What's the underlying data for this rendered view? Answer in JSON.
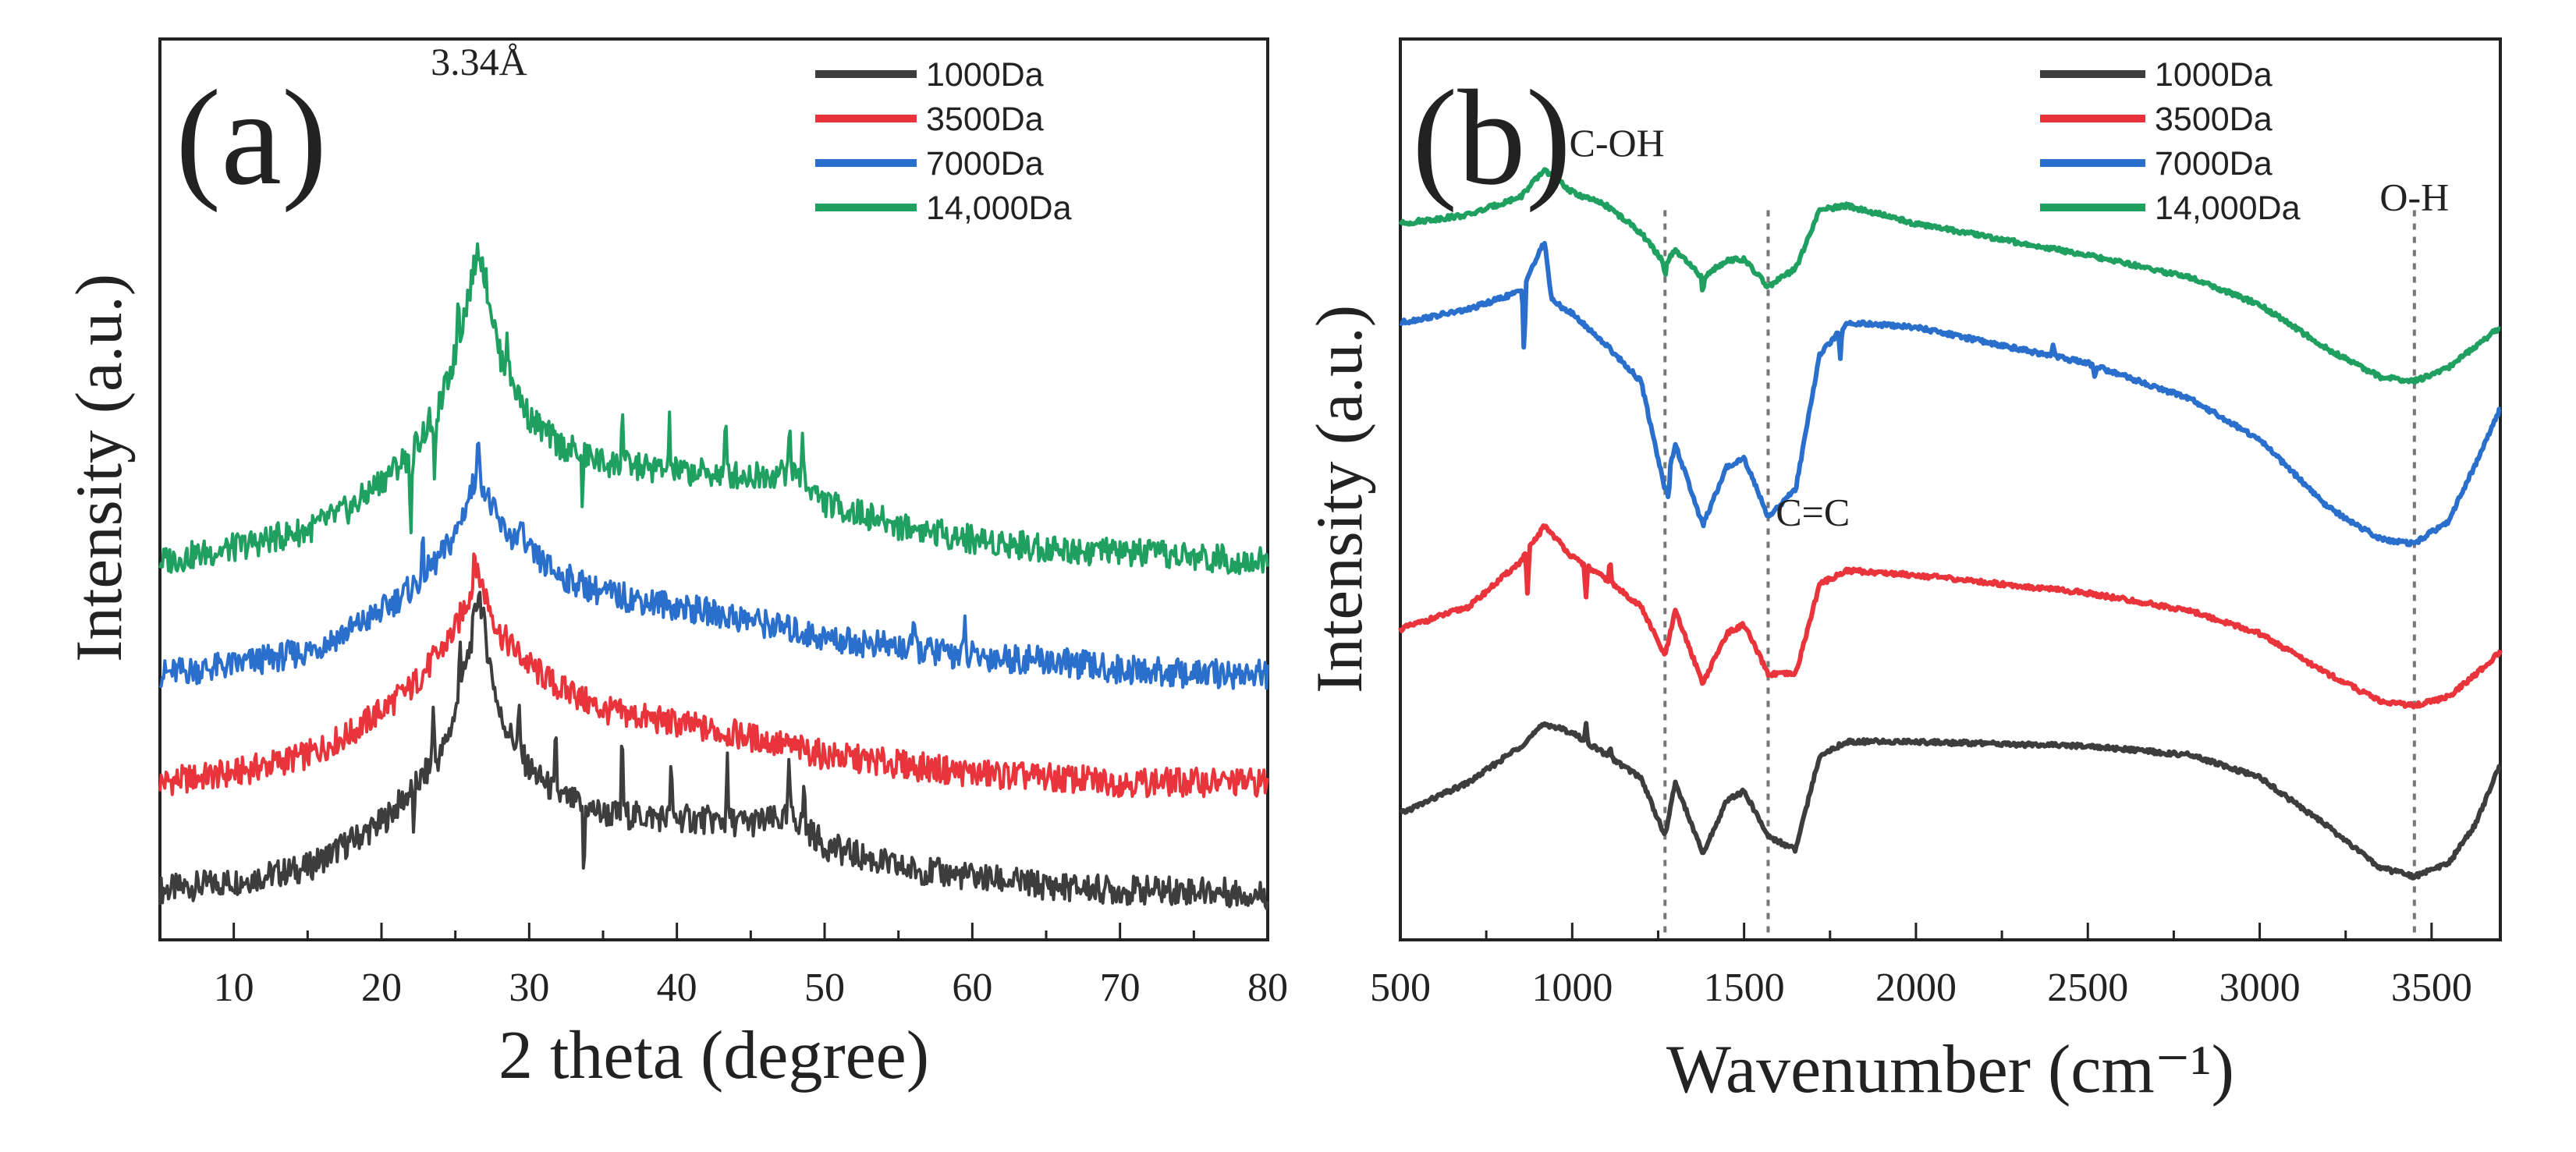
{
  "chart_data": [
    {
      "id": "a",
      "type": "line",
      "panel_label": "(a)",
      "title": "",
      "xlabel": "2 theta (degree)",
      "ylabel": "Intensity (a.u.)",
      "xlim": [
        5,
        80
      ],
      "ylim": [
        0,
        10
      ],
      "x_ticks": [
        10,
        20,
        30,
        40,
        50,
        60,
        70,
        80
      ],
      "y_ticks_shown": false,
      "legend_position": "top-right",
      "annotations": [
        {
          "text": "3.34Å",
          "x": 26.6,
          "y": 9.6
        }
      ],
      "series": [
        {
          "name": "1000Da",
          "color": "#3d3d3d",
          "points": [
            [
              5,
              0.55
            ],
            [
              10,
              0.65
            ],
            [
              15,
              0.8
            ],
            [
              18,
              1.1
            ],
            [
              20,
              1.3
            ],
            [
              22,
              1.65
            ],
            [
              24,
              2.05
            ],
            [
              25,
              2.5
            ],
            [
              26,
              3.25
            ],
            [
              26.6,
              3.9
            ],
            [
              27.2,
              3.2
            ],
            [
              28,
              2.5
            ],
            [
              30,
              1.9
            ],
            [
              32,
              1.6
            ],
            [
              35,
              1.4
            ],
            [
              40,
              1.35
            ],
            [
              45,
              1.3
            ],
            [
              48,
              1.35
            ],
            [
              50,
              1.05
            ],
            [
              55,
              0.8
            ],
            [
              60,
              0.7
            ],
            [
              65,
              0.6
            ],
            [
              70,
              0.55
            ],
            [
              75,
              0.55
            ],
            [
              80,
              0.5
            ]
          ],
          "spikes": [
            [
              22.2,
              -0.55
            ],
            [
              23.5,
              0.7
            ],
            [
              25.3,
              0.8
            ],
            [
              29.3,
              0.5
            ],
            [
              31.8,
              0.7
            ],
            [
              33.7,
              -0.9
            ],
            [
              36.3,
              1.0
            ],
            [
              39.6,
              0.6
            ],
            [
              43.4,
              0.7
            ],
            [
              47.6,
              0.7
            ],
            [
              48.6,
              0.5
            ]
          ]
        },
        {
          "name": "3500Da",
          "color": "#e8343a",
          "points": [
            [
              5,
              1.75
            ],
            [
              10,
              1.85
            ],
            [
              15,
              2.05
            ],
            [
              18,
              2.3
            ],
            [
              20,
              2.55
            ],
            [
              22,
              2.8
            ],
            [
              24,
              3.2
            ],
            [
              25,
              3.45
            ],
            [
              26,
              3.85
            ],
            [
              26.6,
              4.05
            ],
            [
              27.2,
              3.75
            ],
            [
              28,
              3.4
            ],
            [
              30,
              3.05
            ],
            [
              32,
              2.8
            ],
            [
              35,
              2.55
            ],
            [
              40,
              2.4
            ],
            [
              45,
              2.25
            ],
            [
              50,
              2.05
            ],
            [
              55,
              1.95
            ],
            [
              60,
              1.85
            ],
            [
              65,
              1.8
            ],
            [
              70,
              1.75
            ],
            [
              75,
              1.75
            ],
            [
              80,
              1.75
            ]
          ],
          "spikes": [
            [
              26.3,
              0.6
            ],
            [
              33.0,
              0.25
            ]
          ]
        },
        {
          "name": "7000Da",
          "color": "#2a6fcc",
          "points": [
            [
              5,
              2.95
            ],
            [
              10,
              3.05
            ],
            [
              15,
              3.2
            ],
            [
              18,
              3.45
            ],
            [
              20,
              3.65
            ],
            [
              22,
              3.9
            ],
            [
              24,
              4.25
            ],
            [
              25,
              4.5
            ],
            [
              26,
              4.95
            ],
            [
              26.6,
              5.2
            ],
            [
              27.2,
              4.9
            ],
            [
              28,
              4.6
            ],
            [
              30,
              4.3
            ],
            [
              32,
              4.05
            ],
            [
              35,
              3.85
            ],
            [
              40,
              3.7
            ],
            [
              45,
              3.55
            ],
            [
              50,
              3.35
            ],
            [
              55,
              3.25
            ],
            [
              60,
              3.15
            ],
            [
              65,
              3.1
            ],
            [
              70,
              3.0
            ],
            [
              75,
              2.95
            ],
            [
              80,
              2.95
            ]
          ],
          "spikes": [
            [
              22.8,
              0.35
            ],
            [
              26.5,
              0.5
            ],
            [
              29.5,
              0.4
            ],
            [
              56.0,
              0.3
            ],
            [
              59.5,
              0.3
            ]
          ]
        },
        {
          "name": "14,000Da",
          "color": "#1fa060",
          "points": [
            [
              5,
              4.2
            ],
            [
              10,
              4.35
            ],
            [
              15,
              4.55
            ],
            [
              18,
              4.8
            ],
            [
              20,
              5.1
            ],
            [
              22,
              5.4
            ],
            [
              24,
              5.95
            ],
            [
              25,
              6.5
            ],
            [
              26,
              7.25
            ],
            [
              26.6,
              7.7
            ],
            [
              27.2,
              7.2
            ],
            [
              28,
              6.5
            ],
            [
              30,
              5.8
            ],
            [
              32,
              5.5
            ],
            [
              35,
              5.3
            ],
            [
              40,
              5.2
            ],
            [
              45,
              5.15
            ],
            [
              48,
              5.2
            ],
            [
              50,
              4.85
            ],
            [
              55,
              4.6
            ],
            [
              60,
              4.45
            ],
            [
              65,
              4.35
            ],
            [
              70,
              4.3
            ],
            [
              75,
              4.25
            ],
            [
              80,
              4.2
            ]
          ],
          "spikes": [
            [
              22.0,
              -1.0
            ],
            [
              23.6,
              -1.0
            ],
            [
              25.2,
              0.6
            ],
            [
              28.5,
              0.5
            ],
            [
              33.6,
              -0.6
            ],
            [
              36.3,
              0.7
            ],
            [
              39.5,
              0.5
            ],
            [
              43.3,
              0.6
            ],
            [
              47.6,
              0.6
            ],
            [
              48.5,
              0.5
            ]
          ]
        }
      ]
    },
    {
      "id": "b",
      "type": "line",
      "panel_label": "(b)",
      "title": "",
      "xlabel": "Wavenumber (cm⁻¹)",
      "ylabel": "Intensity (a.u.)",
      "xlim": [
        500,
        3700
      ],
      "ylim": [
        0,
        10
      ],
      "x_ticks": [
        500,
        1000,
        1500,
        2000,
        2500,
        3000,
        3500
      ],
      "y_ticks_shown": false,
      "legend_position": "top-right",
      "reference_lines": [
        1270,
        1570,
        3450
      ],
      "annotations": [
        {
          "text": "C-OH",
          "x": 1130,
          "y": 8.7
        },
        {
          "text": "C=C",
          "x": 1700,
          "y": 4.6
        },
        {
          "text": "O-H",
          "x": 3450,
          "y": 8.1
        }
      ],
      "series": [
        {
          "name": "1000Da",
          "color": "#3d3d3d",
          "points": [
            [
              500,
              1.4
            ],
            [
              700,
              1.75
            ],
            [
              850,
              2.15
            ],
            [
              920,
              2.4
            ],
            [
              1000,
              2.3
            ],
            [
              1100,
              2.05
            ],
            [
              1200,
              1.8
            ],
            [
              1270,
              1.15
            ],
            [
              1300,
              1.75
            ],
            [
              1380,
              0.95
            ],
            [
              1450,
              1.55
            ],
            [
              1500,
              1.65
            ],
            [
              1570,
              1.15
            ],
            [
              1650,
              1.0
            ],
            [
              1720,
              2.05
            ],
            [
              1800,
              2.2
            ],
            [
              2000,
              2.2
            ],
            [
              2500,
              2.15
            ],
            [
              2800,
              2.05
            ],
            [
              3000,
              1.8
            ],
            [
              3200,
              1.25
            ],
            [
              3350,
              0.8
            ],
            [
              3450,
              0.7
            ],
            [
              3550,
              0.85
            ],
            [
              3630,
              1.3
            ],
            [
              3700,
              1.95
            ]
          ],
          "spikes": [
            [
              1040,
              0.2
            ],
            [
              1110,
              0.15
            ]
          ]
        },
        {
          "name": "3500Da",
          "color": "#e8343a",
          "points": [
            [
              500,
              3.45
            ],
            [
              700,
              3.7
            ],
            [
              850,
              4.2
            ],
            [
              920,
              4.6
            ],
            [
              1000,
              4.25
            ],
            [
              1100,
              4.0
            ],
            [
              1200,
              3.7
            ],
            [
              1270,
              3.15
            ],
            [
              1300,
              3.65
            ],
            [
              1380,
              2.85
            ],
            [
              1450,
              3.4
            ],
            [
              1500,
              3.5
            ],
            [
              1570,
              2.95
            ],
            [
              1650,
              2.95
            ],
            [
              1720,
              3.95
            ],
            [
              1800,
              4.1
            ],
            [
              2000,
              4.05
            ],
            [
              2500,
              3.85
            ],
            [
              2800,
              3.65
            ],
            [
              3000,
              3.4
            ],
            [
              3200,
              2.95
            ],
            [
              3350,
              2.65
            ],
            [
              3450,
              2.6
            ],
            [
              3550,
              2.7
            ],
            [
              3630,
              2.95
            ],
            [
              3700,
              3.2
            ]
          ],
          "spikes": [
            [
              870,
              -0.5
            ],
            [
              1040,
              -0.35
            ],
            [
              1110,
              0.25
            ]
          ]
        },
        {
          "name": "7000Da",
          "color": "#2a6fcc",
          "points": [
            [
              500,
              6.85
            ],
            [
              700,
              7.0
            ],
            [
              850,
              7.2
            ],
            [
              920,
              7.75
            ],
            [
              940,
              7.1
            ],
            [
              1000,
              6.95
            ],
            [
              1100,
              6.6
            ],
            [
              1200,
              6.2
            ],
            [
              1270,
              5.0
            ],
            [
              1300,
              5.5
            ],
            [
              1380,
              4.6
            ],
            [
              1450,
              5.25
            ],
            [
              1500,
              5.35
            ],
            [
              1570,
              4.7
            ],
            [
              1650,
              5.0
            ],
            [
              1720,
              6.5
            ],
            [
              1800,
              6.85
            ],
            [
              2000,
              6.8
            ],
            [
              2500,
              6.4
            ],
            [
              2800,
              6.0
            ],
            [
              3000,
              5.55
            ],
            [
              3200,
              4.8
            ],
            [
              3350,
              4.45
            ],
            [
              3450,
              4.4
            ],
            [
              3550,
              4.65
            ],
            [
              3630,
              5.3
            ],
            [
              3700,
              5.9
            ]
          ],
          "spikes": [
            [
              860,
              -0.8
            ],
            [
              1280,
              -0.3
            ],
            [
              1780,
              -0.3
            ],
            [
              2400,
              0.15
            ],
            [
              2520,
              -0.15
            ]
          ]
        },
        {
          "name": "14,000Da",
          "color": "#1fa060",
          "points": [
            [
              500,
              7.95
            ],
            [
              700,
              8.05
            ],
            [
              850,
              8.25
            ],
            [
              920,
              8.55
            ],
            [
              1000,
              8.3
            ],
            [
              1100,
              8.15
            ],
            [
              1200,
              7.85
            ],
            [
              1270,
              7.5
            ],
            [
              1300,
              7.65
            ],
            [
              1380,
              7.35
            ],
            [
              1450,
              7.55
            ],
            [
              1500,
              7.55
            ],
            [
              1570,
              7.25
            ],
            [
              1650,
              7.45
            ],
            [
              1720,
              8.1
            ],
            [
              1800,
              8.15
            ],
            [
              2000,
              7.95
            ],
            [
              2500,
              7.6
            ],
            [
              2800,
              7.35
            ],
            [
              3000,
              7.05
            ],
            [
              3200,
              6.55
            ],
            [
              3350,
              6.25
            ],
            [
              3450,
              6.2
            ],
            [
              3550,
              6.35
            ],
            [
              3630,
              6.6
            ],
            [
              3700,
              6.8
            ]
          ],
          "spikes": [
            [
              1380,
              -0.2
            ],
            [
              1270,
              -0.15
            ]
          ]
        }
      ]
    }
  ]
}
